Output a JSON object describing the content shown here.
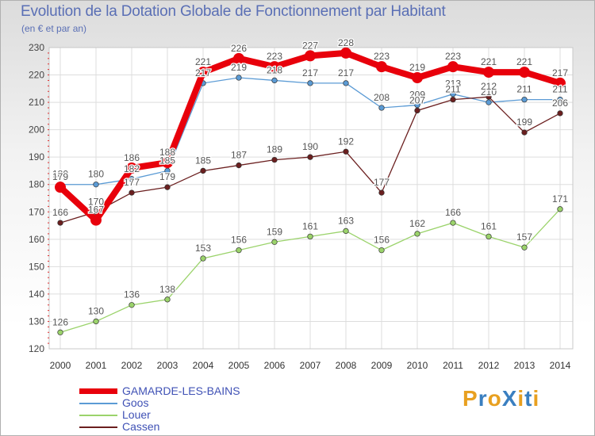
{
  "header": {
    "title": "Evolution de la Dotation Globale de Fonctionnement par Habitant",
    "subtitle": "(en € et par an)"
  },
  "brand": {
    "text": "ProXiti",
    "letters": [
      "P",
      "r",
      "o",
      "X",
      "i",
      "t",
      "i"
    ],
    "colors": [
      "#e8a020",
      "#3a7fc0",
      "#e8a020",
      "#3a7fc0",
      "#e8a020",
      "#3a7fc0",
      "#e8a020"
    ]
  },
  "chart_data": {
    "type": "line",
    "title": "Evolution de la Dotation Globale de Fonctionnement par Habitant",
    "subtitle": "(en € et par an)",
    "xlabel": "",
    "ylabel": "",
    "x": [
      "2000",
      "2001",
      "2002",
      "2003",
      "2004",
      "2005",
      "2006",
      "2007",
      "2008",
      "2009",
      "2010",
      "2011",
      "2012",
      "2013",
      "2014"
    ],
    "ylim": [
      120,
      230
    ],
    "yticks": [
      120,
      130,
      140,
      150,
      160,
      170,
      180,
      190,
      200,
      210,
      220,
      230
    ],
    "grid": true,
    "legend_position": "bottom-left",
    "series": [
      {
        "name": "GAMARDE-LES-BAINS",
        "color": "#e8000b",
        "highlight": true,
        "values": [
          179,
          167,
          186,
          188,
          221,
          226,
          223,
          227,
          228,
          223,
          219,
          223,
          221,
          221,
          217
        ],
        "labels": [
          "179",
          "167",
          "186",
          "188",
          "221",
          "226",
          "223",
          "227",
          "228",
          "223",
          "219",
          "223",
          "221",
          "221",
          "217"
        ]
      },
      {
        "name": "Goos",
        "color": "#5b9bd5",
        "highlight": false,
        "values": [
          180,
          180,
          182,
          185,
          217,
          219,
          218,
          217,
          217,
          208,
          209,
          213,
          210,
          211,
          211
        ],
        "labels": [
          "180",
          "180",
          "182",
          "185",
          "217",
          "219",
          "218",
          "217",
          "217",
          "208",
          "209",
          "213",
          "210",
          "211",
          "211"
        ]
      },
      {
        "name": "Louer",
        "color": "#9bd36b",
        "highlight": false,
        "values": [
          126,
          130,
          136,
          138,
          153,
          156,
          159,
          161,
          163,
          156,
          162,
          166,
          161,
          157,
          171
        ],
        "labels": [
          "126",
          "130",
          "136",
          "138",
          "153",
          "156",
          "159",
          "161",
          "163",
          "156",
          "162",
          "166",
          "161",
          "157",
          "171"
        ]
      },
      {
        "name": "Cassen",
        "color": "#6b1f1f",
        "highlight": false,
        "values": [
          166,
          170,
          177,
          179,
          185,
          187,
          189,
          190,
          192,
          177,
          207,
          211,
          212,
          199,
          206
        ],
        "labels": [
          "166",
          "170",
          "177",
          "179",
          "185",
          "187",
          "189",
          "190",
          "192",
          "177",
          "207",
          "211",
          "212",
          "199",
          "206"
        ]
      }
    ]
  }
}
